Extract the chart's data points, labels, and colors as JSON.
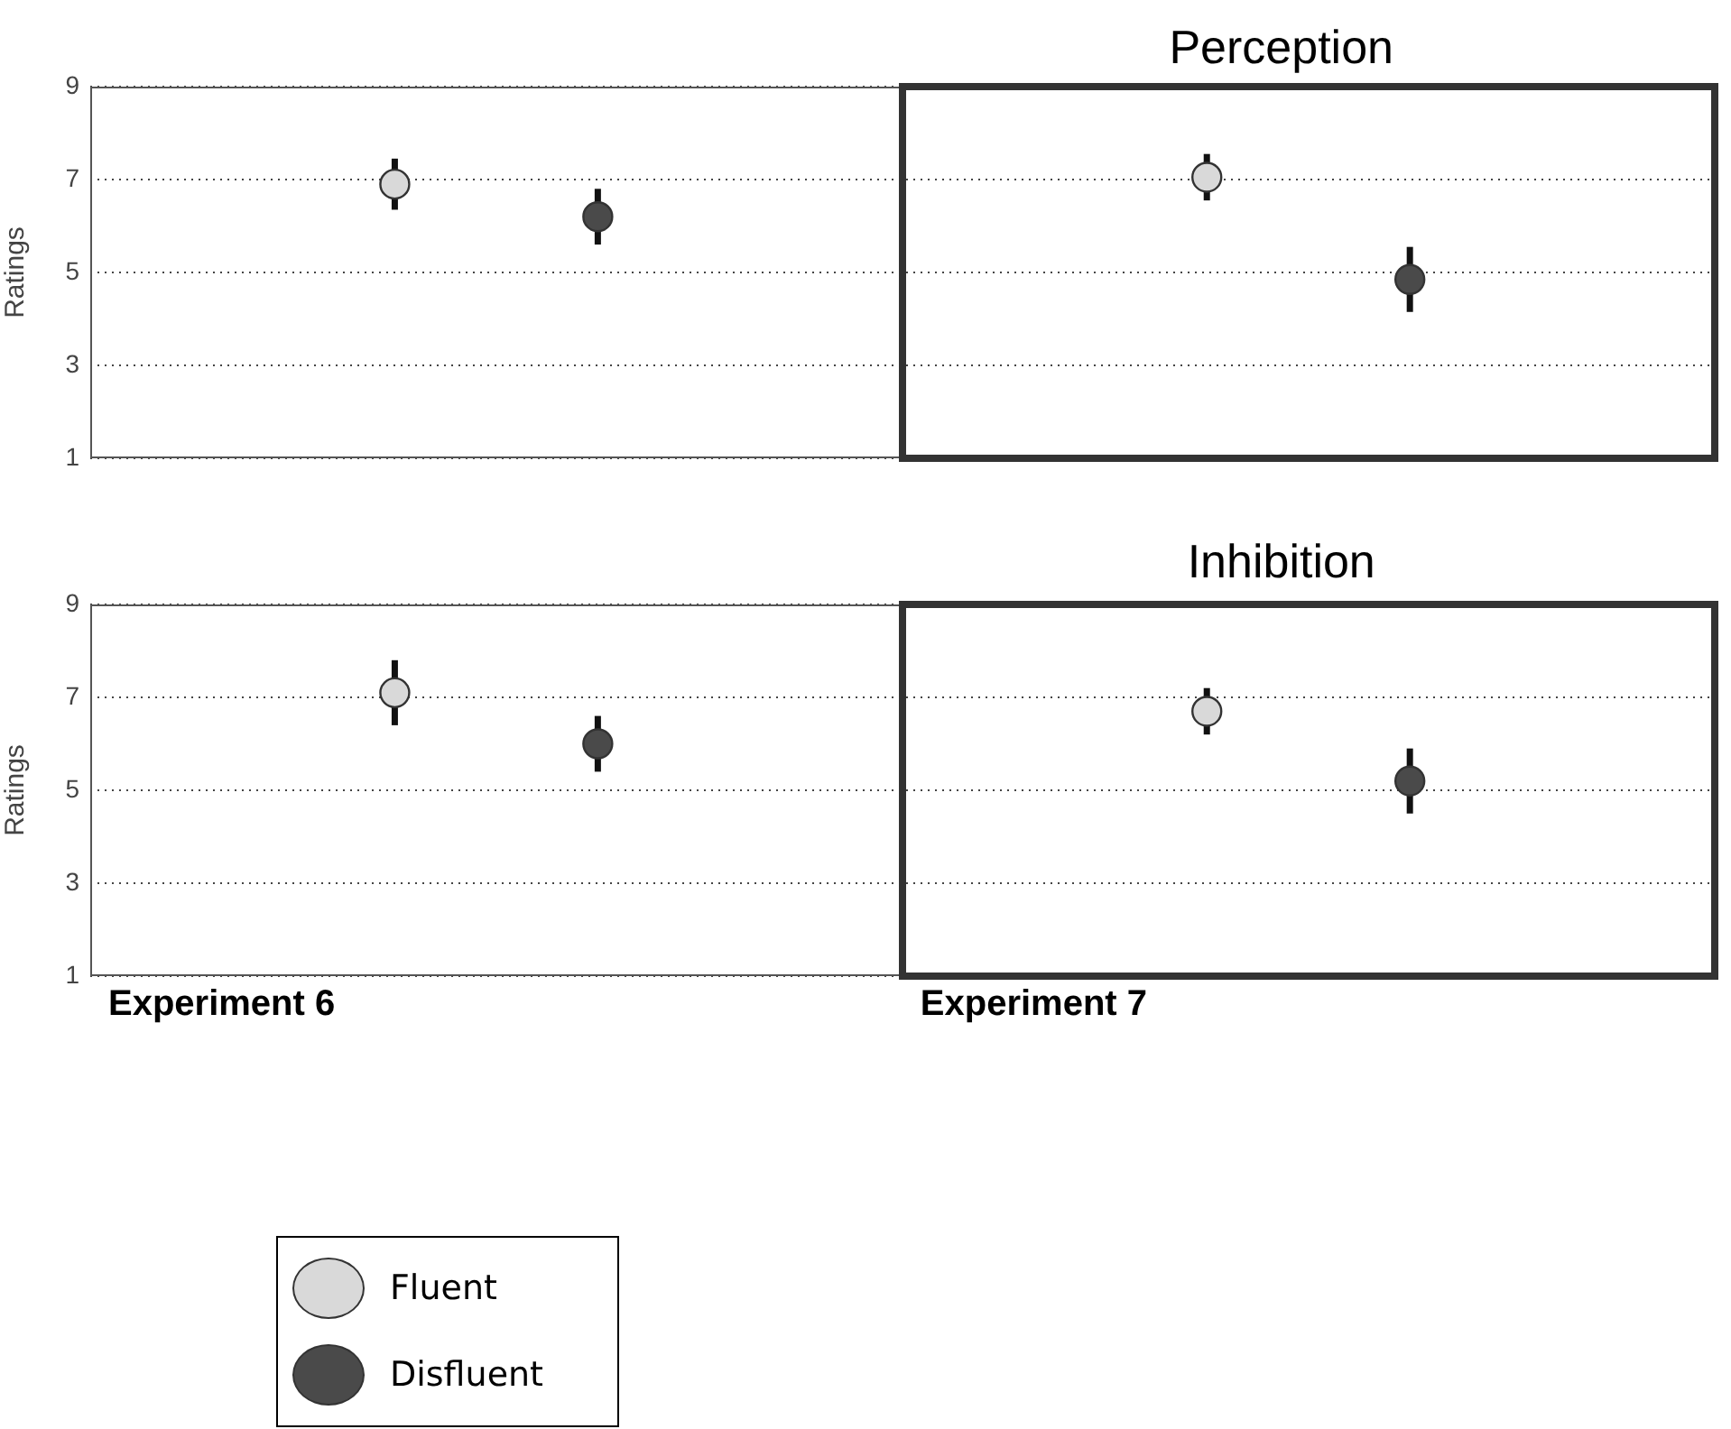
{
  "chart_data": [
    {
      "type": "scatter",
      "title": "Perception",
      "categories": [
        null,
        null,
        null,
        null,
        null,
        null,
        null,
        null
      ],
      "ylabel": "Ratings",
      "ylim": [
        1,
        9
      ],
      "yticks": [
        1,
        3,
        5,
        7,
        9
      ],
      "grid": "y",
      "tick_labels": "y",
      "marker": "circle",
      "series": [
        {
          "color": "#d9d9d9",
          "values": [
            null,
            6.9,
            null,
            null,
            null,
            7.05,
            null,
            null
          ],
          "errors": [
            null,
            0.55,
            null,
            null,
            null,
            0.5,
            null,
            null
          ]
        },
        {
          "color": "#4a4a4a",
          "values": [
            null,
            null,
            6.2,
            null,
            null,
            null,
            4.85,
            null
          ],
          "errors": [
            null,
            null,
            0.6,
            null,
            null,
            null,
            0.7,
            null
          ]
        }
      ]
    },
    {
      "type": "scatter",
      "title": "Inhibition",
      "categories": [
        null,
        null,
        null,
        null,
        null,
        null,
        null,
        null
      ],
      "ylabel": "Ratings",
      "ylim": [
        1,
        9
      ],
      "yticks": [
        1,
        3,
        5,
        7,
        9
      ],
      "grid": "y",
      "tick_labels": "y",
      "marker": "circle",
      "legend": "bottom",
      "annotations": [
        "Experiment 6",
        "Experiment 7"
      ],
      "series": [
        {
          "name": "Fluent",
          "color": "#d9d9d9",
          "values": [
            null,
            7.1,
            null,
            null,
            null,
            6.7,
            null,
            null
          ],
          "errors": [
            null,
            0.7,
            null,
            null,
            null,
            0.5,
            null,
            null
          ]
        },
        {
          "name": "Disfluent",
          "color": "#4a4a4a",
          "values": [
            null,
            null,
            6.0,
            null,
            null,
            null,
            5.2,
            null
          ],
          "errors": [
            null,
            null,
            0.6,
            null,
            null,
            null,
            0.7,
            null
          ]
        }
      ]
    }
  ]
}
